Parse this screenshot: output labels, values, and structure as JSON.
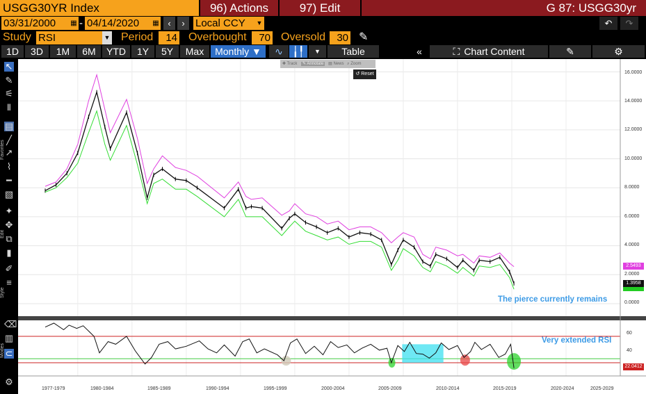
{
  "header": {
    "ticker": "USGG30YR Index",
    "actions": "96) Actions",
    "edit": "97) Edit",
    "chart_id": "G 87: USGG30yr"
  },
  "dates": {
    "start": "03/31/2000",
    "sep": "-",
    "end": "04/14/2020",
    "currency": "Local CCY"
  },
  "study": {
    "label": "Study",
    "value": "RSI",
    "period_label": "Period",
    "period": "14",
    "overbought_label": "Overbought",
    "overbought": "70",
    "oversold_label": "Oversold",
    "oversold": "30"
  },
  "toolbar": {
    "ranges": [
      "1D",
      "3D",
      "1M",
      "6M",
      "YTD",
      "1Y",
      "5Y",
      "Max"
    ],
    "frequency": "Monthly ▼",
    "table": "Table",
    "chart_content": "Chart Content"
  },
  "mini_toolbar": {
    "track": "Track",
    "annotate": "Annotate",
    "news": "News",
    "zoom": "Zoom",
    "reset": "Reset"
  },
  "sidebar_labels": {
    "favorites": "Favorites",
    "edit": "Edit",
    "style": "Style",
    "modes": "Modes"
  },
  "annotations": {
    "pierce": "The pierce currently remains",
    "rsi": "Very extended RSI"
  },
  "colors": {
    "accent": "#f6a21c",
    "header_red": "#8b1a1f",
    "upper_band": "#e040e0",
    "lower_band": "#33dd33",
    "price": "#111111",
    "rsi_line": "#111111",
    "rsi_bounds": "#cc2222",
    "rsi_mid": "#44cc44",
    "annotation": "#3d9be6"
  },
  "chart_data": [
    {
      "type": "line",
      "title": "",
      "xlabel": "",
      "ylabel": "",
      "ylim": [
        0,
        16.5
      ],
      "grid": true,
      "y_ticks": [
        "16.0000",
        "14.0000",
        "12.0000",
        "10.0000",
        "8.0000",
        "6.0000",
        "4.0000",
        "2.0000",
        "0.0000"
      ],
      "x_ticks": [
        "1977-1979",
        "1980-1984",
        "1985-1989",
        "1990-1994",
        "1995-1999",
        "2000-2004",
        "2005-2009",
        "2010-2014",
        "2015-2019",
        "2020-2024",
        "2025-2029"
      ],
      "x": [
        1977,
        1978,
        1979,
        1980,
        1981,
        1981.75,
        1982.5,
        1983,
        1984.5,
        1985.5,
        1986.4,
        1987,
        1987.8,
        1989,
        1990,
        1991,
        1993.5,
        1994.8,
        1995.5,
        1996,
        1997,
        1998.8,
        1999.5,
        2000,
        2001,
        2002,
        2003,
        2004,
        2005,
        2006,
        2007,
        2008,
        2008.9,
        2009.5,
        2010,
        2011,
        2011.8,
        2012.5,
        2013,
        2014,
        2015,
        2015.5,
        2016.5,
        2017,
        2018,
        2018.9,
        2019.8,
        2020.2
      ],
      "series": [
        {
          "role": "upper",
          "values": [
            8.1,
            8.4,
            9.3,
            11.0,
            14.0,
            15.8,
            13.4,
            11.8,
            14.1,
            11.4,
            8.3,
            9.3,
            10.2,
            9.4,
            9.2,
            8.8,
            7.3,
            8.4,
            7.4,
            7.2,
            7.3,
            6.1,
            6.4,
            6.9,
            6.2,
            6.0,
            5.5,
            5.7,
            5.1,
            5.3,
            5.3,
            4.9,
            4.2,
            4.6,
            4.9,
            4.6,
            3.4,
            3.1,
            3.9,
            3.7,
            3.3,
            3.4,
            2.8,
            3.3,
            3.2,
            3.5,
            2.8,
            2.55
          ]
        },
        {
          "role": "price",
          "values": [
            7.8,
            8.2,
            9.0,
            10.4,
            12.9,
            14.6,
            12.2,
            10.7,
            13.2,
            10.4,
            7.3,
            8.9,
            9.3,
            8.6,
            8.5,
            8.0,
            6.6,
            7.9,
            6.6,
            6.7,
            6.6,
            5.2,
            5.9,
            6.2,
            5.6,
            5.3,
            4.9,
            5.2,
            4.6,
            4.9,
            4.8,
            4.4,
            2.7,
            3.7,
            4.4,
            3.9,
            2.9,
            2.6,
            3.4,
            3.1,
            2.5,
            3.0,
            2.3,
            3.0,
            2.9,
            3.2,
            2.2,
            1.3958
          ]
        },
        {
          "role": "lower",
          "values": [
            7.7,
            8.0,
            8.7,
            9.7,
            11.8,
            13.3,
            11.0,
            9.9,
            12.3,
            9.6,
            6.9,
            8.3,
            8.6,
            7.9,
            7.9,
            7.4,
            6.0,
            7.2,
            6.0,
            6.0,
            6.0,
            4.7,
            5.3,
            5.7,
            5.0,
            4.7,
            4.4,
            4.6,
            4.1,
            4.3,
            4.3,
            3.9,
            2.3,
            3.0,
            3.8,
            3.3,
            2.5,
            2.2,
            2.9,
            2.6,
            2.1,
            2.5,
            1.9,
            2.6,
            2.5,
            2.7,
            1.8,
            1.0
          ]
        }
      ],
      "last_values": {
        "upper": "2.5493",
        "price": "1.3958"
      }
    },
    {
      "type": "line",
      "title": "",
      "ylim": [
        10,
        90
      ],
      "y_ticks": [
        "60",
        "40"
      ],
      "overbought": 70,
      "oversold": 30,
      "last_value": "22.0412",
      "x": [
        1977,
        1977.8,
        1978.7,
        1979.2,
        1979.9,
        1980.5,
        1981.5,
        1982,
        1982.8,
        1983.5,
        1984.5,
        1985.3,
        1986.2,
        1986.8,
        1987.5,
        1988.3,
        1989,
        1990,
        1991.2,
        1992,
        1992.8,
        1993.5,
        1994.5,
        1995.2,
        1995.8,
        1996.5,
        1997.2,
        1998.4,
        1999,
        1999.6,
        2000.2,
        2001,
        2001.8,
        2002.6,
        2003.3,
        2004,
        2004.8,
        2005.5,
        2006.2,
        2007,
        2007.8,
        2008.5,
        2008.9,
        2009.5,
        2010.1,
        2010.6,
        2011.2,
        2011.8,
        2012.4,
        2013,
        2013.5,
        2014.2,
        2015,
        2015.6,
        2016.2,
        2016.6,
        2017.2,
        2018,
        2018.8,
        2019.4,
        2019.9,
        2020.2
      ],
      "values": [
        84,
        90,
        80,
        87,
        82,
        86,
        70,
        45,
        62,
        58,
        70,
        48,
        28,
        38,
        58,
        62,
        51,
        55,
        63,
        51,
        45,
        57,
        40,
        62,
        66,
        45,
        51,
        42,
        33,
        60,
        66,
        44,
        55,
        42,
        62,
        53,
        57,
        45,
        52,
        58,
        49,
        52,
        30,
        56,
        47,
        61,
        44,
        43,
        37,
        45,
        60,
        50,
        56,
        38,
        47,
        61,
        50,
        58,
        38,
        43,
        58,
        22.0412
      ]
    }
  ]
}
